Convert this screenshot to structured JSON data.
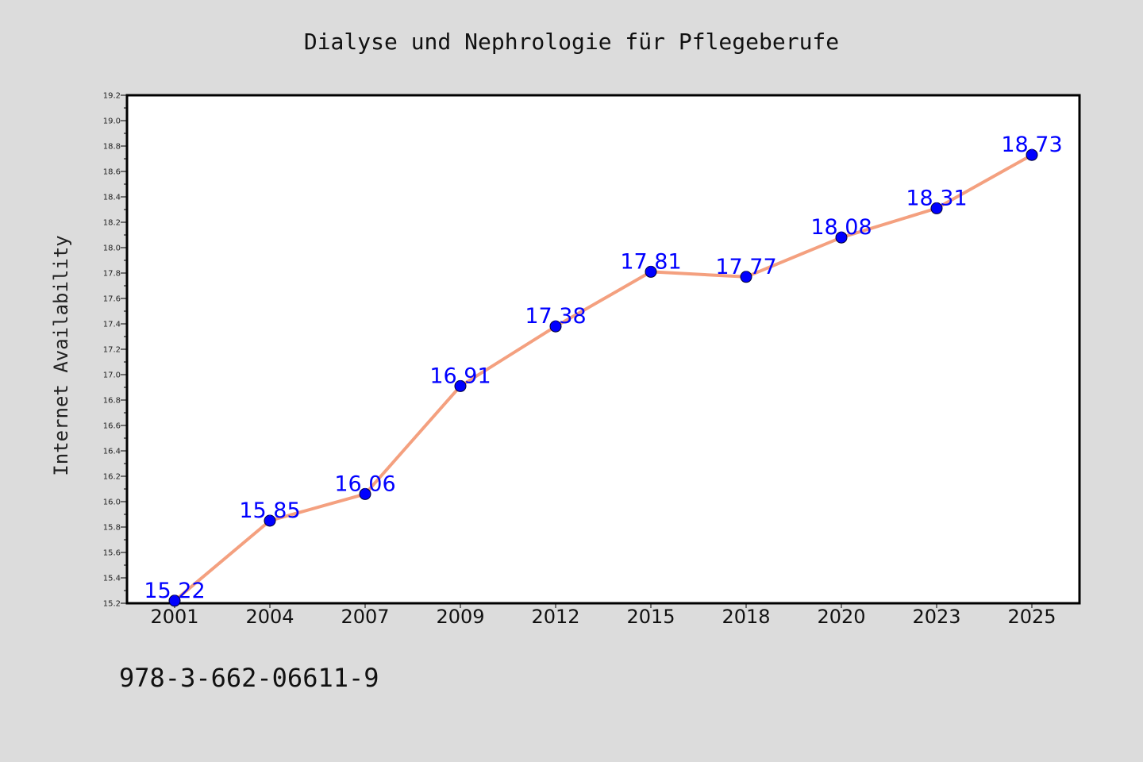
{
  "chart_data": {
    "type": "line",
    "title": "Dialyse und Nephrologie für Pflegeberufe",
    "xlabel": "",
    "ylabel": "Internet Availability",
    "categories": [
      "2001",
      "2004",
      "2007",
      "2009",
      "2012",
      "2015",
      "2018",
      "2020",
      "2023",
      "2025"
    ],
    "series": [
      {
        "values": [
          15.22,
          15.85,
          16.06,
          16.91,
          17.38,
          17.81,
          17.77,
          18.08,
          18.31,
          18.73
        ],
        "labels": [
          "15.22",
          "15.85",
          "16.06",
          "16.91",
          "17.38",
          "17.81",
          "17.77",
          "18.08",
          "18.31",
          "18.73"
        ],
        "line_color": "#f4a07f",
        "marker_color": "#0000ff"
      }
    ],
    "ylim": [
      15.2,
      19.2
    ],
    "yticks": [
      "15.2",
      "15.4",
      "15.6",
      "15.8",
      "16.0",
      "16.2",
      "16.4",
      "16.6",
      "16.8",
      "17.0",
      "17.2",
      "17.4",
      "17.6",
      "17.8",
      "18.0",
      "18.2",
      "18.4",
      "18.6",
      "18.8",
      "19.0",
      "19.2"
    ],
    "grid": false,
    "legend": "none",
    "annotation": "978-3-662-06611-9"
  }
}
